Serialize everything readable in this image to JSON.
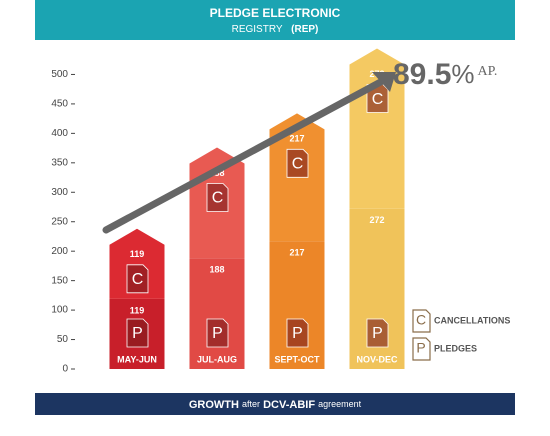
{
  "chart_data": {
    "type": "stacked-bar",
    "title": "PLEDGE ELECTRONIC",
    "subtitle": [
      "REGISTRY",
      "(REP)"
    ],
    "footer": [
      "GROWTH",
      "after",
      "DCV-ABIF",
      "agreement"
    ],
    "annotation": [
      "89.5",
      "%",
      "AP."
    ],
    "categories": [
      "MAY-JUN",
      "JUL-AUG",
      "SEPT-OCT",
      "NOV-DEC"
    ],
    "series": [
      {
        "name": "PLEDGES",
        "icon": "P",
        "color": "#8a6d4a",
        "colors": [
          "#c81f2a",
          "#e14a45",
          "#ec8628",
          "#f0c35a"
        ],
        "values": [
          119,
          188,
          217,
          272
        ]
      },
      {
        "name": "CANCELLATIONS",
        "icon": "C",
        "color": "#8a6d4a",
        "colors": [
          "#dc2a32",
          "#e85a52",
          "#f09030",
          "#f4c962"
        ],
        "values": [
          119,
          188,
          217,
          272
        ]
      }
    ],
    "ylim": [
      0,
      550
    ],
    "yticks": [
      0,
      50,
      100,
      150,
      200,
      250,
      300,
      350,
      400,
      450,
      500
    ]
  }
}
